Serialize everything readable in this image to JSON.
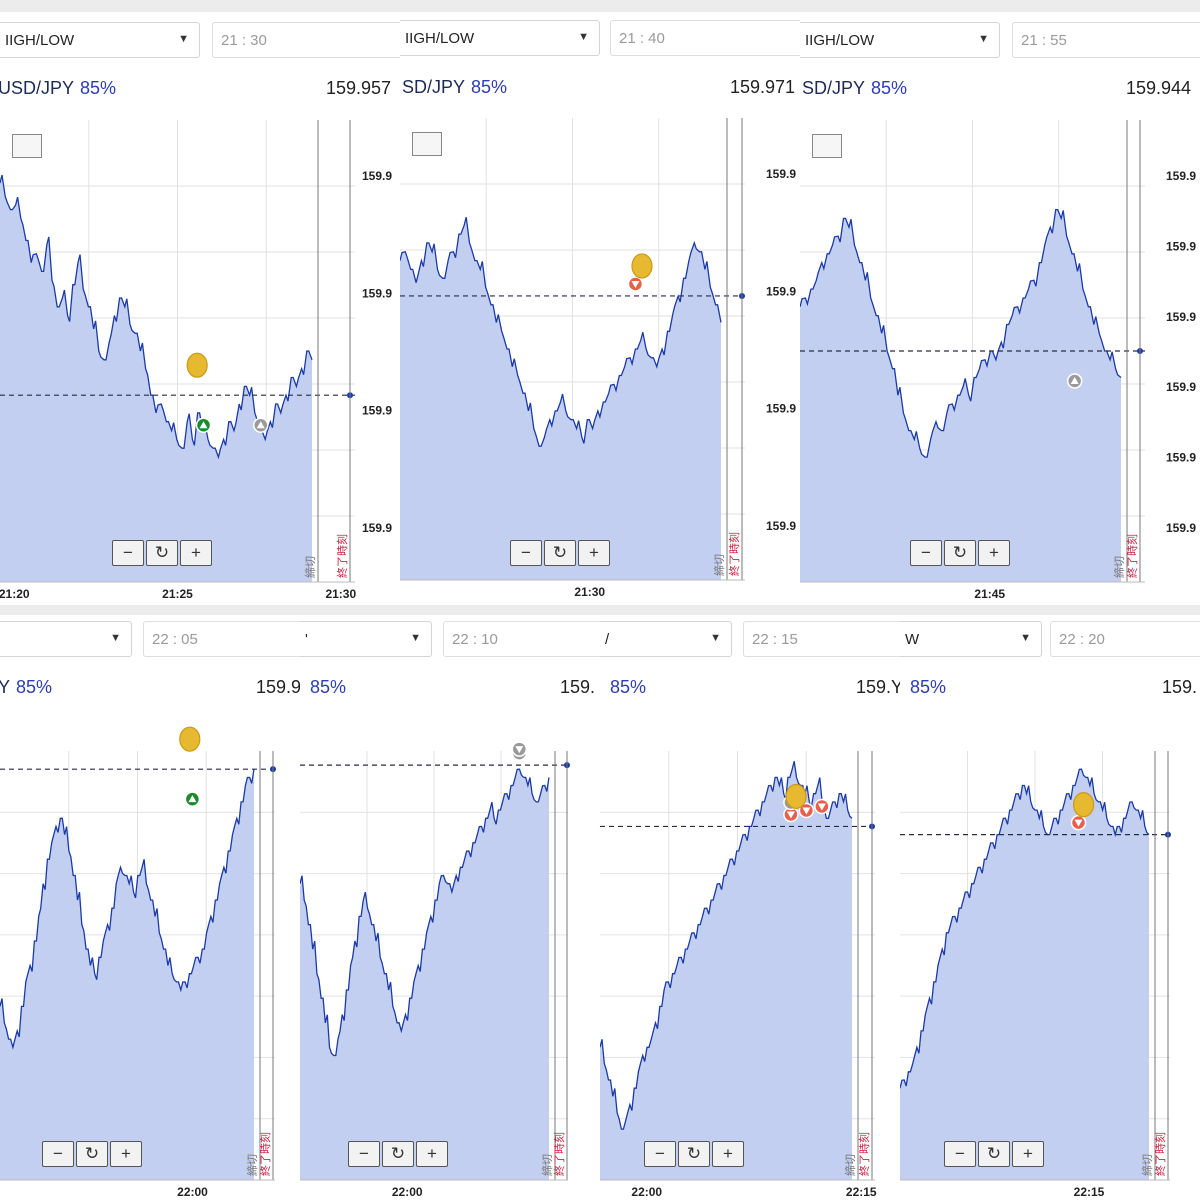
{
  "colors": {
    "line": "#1a3aa8",
    "fill": "#c3cff0",
    "grid": "#e2e2e2",
    "dash": "#2a2a4a",
    "up": "#1a8a2a",
    "down": "#e8604a",
    "grey": "#9a9a9a",
    "coin": "#e6b931",
    "end": "#cc2244"
  },
  "icons": {
    "select_arrow": "▼",
    "zoom_out": "−",
    "zoom_reset": "↻",
    "zoom_in": "+",
    "chart_type": "chart-type-icon"
  },
  "panels": [
    {
      "type_label": "IIGH/LOW",
      "time_label": "21 : 30",
      "pair": "USD/JPY",
      "payout": "85%",
      "price": "159.957",
      "y_ticks": [
        "159.9",
        "159.9",
        "159.9",
        "159.9"
      ],
      "x_ticks": [
        "21:20",
        "21:25",
        "21:30"
      ],
      "close_label": "締切",
      "end_label": "終了時刻"
    },
    {
      "type_label": "IIGH/LOW",
      "time_label": "21 : 40",
      "pair": "SD/JPY",
      "payout": "85%",
      "price": "159.971",
      "y_ticks": [
        "159.9",
        "159.9",
        "159.9",
        "159.9"
      ],
      "x_ticks": [
        "21:30"
      ],
      "close_label": "締切",
      "end_label": "終了時刻"
    },
    {
      "type_label": "IIGH/LOW",
      "time_label": "21 : 55",
      "pair": "SD/JPY",
      "payout": "85%",
      "price": "159.944",
      "y_ticks": [
        "159.9",
        "159.9",
        "159.9",
        "159.9",
        "159.9",
        "159.9"
      ],
      "x_ticks": [
        "21:45"
      ],
      "close_label": "締切",
      "end_label": "終了時刻"
    },
    {
      "type_label": "",
      "time_label": "22 : 05",
      "pair": "Y",
      "payout": "85%",
      "price": "159.9",
      "y_ticks": [],
      "x_ticks": [
        "22:00"
      ],
      "close_label": "締切",
      "end_label": "終了時刻"
    },
    {
      "type_label": "'",
      "time_label": "22 : 10",
      "pair": "",
      "payout": "85%",
      "price": "159.",
      "y_ticks": [],
      "x_ticks": [
        "22:00"
      ],
      "close_label": "締切",
      "end_label": "終了時刻"
    },
    {
      "type_label": "/",
      "time_label": "22 : 15",
      "pair": "",
      "payout": "85%",
      "price": "159.Y",
      "y_ticks": [],
      "x_ticks": [
        "22:00",
        "22:15"
      ],
      "close_label": "締切",
      "end_label": "終了時刻"
    },
    {
      "type_label": "W",
      "time_label": "22 : 20",
      "pair": "",
      "payout": "85%",
      "price": "159.",
      "y_ticks": [],
      "x_ticks": [
        "22:15"
      ],
      "close_label": "締切",
      "end_label": "終了時刻"
    }
  ],
  "chart_data": [
    {
      "type": "area",
      "pair": "USD/JPY",
      "x_ticks": [
        "21:20",
        "21:25",
        "21:30"
      ],
      "y_ticks": [
        "159.9",
        "159.9",
        "159.9",
        "159.9"
      ],
      "series": [
        {
          "values": [
            0.88,
            0.85,
            0.82,
            0.83,
            0.8,
            0.75,
            0.7,
            0.72,
            0.68,
            0.74,
            0.66,
            0.6,
            0.62,
            0.58,
            0.65,
            0.7,
            0.64,
            0.6,
            0.55,
            0.5,
            0.48,
            0.52,
            0.58,
            0.62,
            0.6,
            0.56,
            0.54,
            0.5,
            0.46,
            0.4,
            0.36,
            0.38,
            0.34,
            0.32,
            0.3,
            0.28,
            0.34,
            0.3,
            0.36,
            0.32,
            0.3,
            0.28,
            0.26,
            0.3,
            0.34,
            0.32,
            0.38,
            0.42,
            0.4,
            0.36,
            0.32,
            0.3,
            0.34,
            0.38,
            0.36,
            0.4,
            0.44,
            0.42,
            0.46,
            0.5,
            0.48
          ]
        }
      ],
      "ref": 0.4,
      "markers": [
        {
          "kind": "up",
          "at": 0.64
        },
        {
          "kind": "grey-up",
          "at": 0.82
        },
        {
          "kind": "coin",
          "at": 0.62
        }
      ]
    },
    {
      "type": "area",
      "pair": "USD/JPY",
      "x_ticks": [
        "21:30"
      ],
      "y_ticks": [
        "159.9",
        "159.9",
        "159.9",
        "159.9"
      ],
      "series": [
        {
          "values": [
            0.7,
            0.72,
            0.68,
            0.65,
            0.7,
            0.74,
            0.72,
            0.68,
            0.66,
            0.7,
            0.72,
            0.76,
            0.78,
            0.74,
            0.7,
            0.68,
            0.64,
            0.6,
            0.56,
            0.54,
            0.5,
            0.46,
            0.44,
            0.4,
            0.36,
            0.32,
            0.28,
            0.3,
            0.34,
            0.36,
            0.38,
            0.36,
            0.34,
            0.32,
            0.3,
            0.34,
            0.32,
            0.36,
            0.38,
            0.4,
            0.42,
            0.44,
            0.46,
            0.48,
            0.5,
            0.52,
            0.5,
            0.48,
            0.46,
            0.5,
            0.54,
            0.58,
            0.62,
            0.66,
            0.7,
            0.74,
            0.72,
            0.68,
            0.64,
            0.6,
            0.56
          ]
        }
      ],
      "ref": 0.62,
      "markers": [
        {
          "kind": "down",
          "at": 0.72
        },
        {
          "kind": "coin",
          "at": 0.74
        }
      ]
    },
    {
      "type": "area",
      "pair": "USD/JPY",
      "x_ticks": [
        "21:45"
      ],
      "y_ticks": [
        "159.9",
        "159.9",
        "159.9",
        "159.9",
        "159.9",
        "159.9"
      ],
      "series": [
        {
          "values": [
            0.6,
            0.62,
            0.64,
            0.66,
            0.7,
            0.72,
            0.74,
            0.76,
            0.8,
            0.78,
            0.74,
            0.7,
            0.66,
            0.62,
            0.58,
            0.54,
            0.5,
            0.46,
            0.4,
            0.36,
            0.32,
            0.3,
            0.28,
            0.26,
            0.3,
            0.34,
            0.32,
            0.36,
            0.38,
            0.4,
            0.42,
            0.4,
            0.44,
            0.46,
            0.48,
            0.5,
            0.48,
            0.52,
            0.56,
            0.58,
            0.6,
            0.62,
            0.64,
            0.66,
            0.7,
            0.74,
            0.78,
            0.82,
            0.8,
            0.76,
            0.72,
            0.68,
            0.64,
            0.6,
            0.56,
            0.54,
            0.5,
            0.48,
            0.46,
            0.44
          ]
        }
      ],
      "ref": 0.5,
      "markers": [
        {
          "kind": "grey-up",
          "at": 0.84
        }
      ]
    },
    {
      "type": "area",
      "x_ticks": [
        "22:00"
      ],
      "series": [
        {
          "values": [
            0.4,
            0.36,
            0.32,
            0.3,
            0.34,
            0.4,
            0.46,
            0.5,
            0.56,
            0.62,
            0.7,
            0.76,
            0.8,
            0.84,
            0.86,
            0.82,
            0.78,
            0.72,
            0.66,
            0.6,
            0.54,
            0.5,
            0.48,
            0.52,
            0.56,
            0.6,
            0.64,
            0.7,
            0.74,
            0.72,
            0.7,
            0.68,
            0.72,
            0.74,
            0.7,
            0.66,
            0.62,
            0.58,
            0.54,
            0.5,
            0.48,
            0.46,
            0.44,
            0.46,
            0.48,
            0.5,
            0.52,
            0.54,
            0.58,
            0.62,
            0.66,
            0.7,
            0.74,
            0.78,
            0.82,
            0.86,
            0.9,
            0.94,
            0.96,
            0.98
          ]
        }
      ],
      "ref": 0.98,
      "markers": [
        {
          "kind": "up",
          "at": 0.74
        },
        {
          "kind": "coin",
          "at": 0.73
        }
      ]
    },
    {
      "type": "area",
      "x_ticks": [
        "22:00"
      ],
      "series": [
        {
          "values": [
            0.7,
            0.66,
            0.6,
            0.54,
            0.48,
            0.42,
            0.36,
            0.3,
            0.28,
            0.32,
            0.38,
            0.44,
            0.5,
            0.56,
            0.62,
            0.66,
            0.64,
            0.6,
            0.56,
            0.52,
            0.48,
            0.44,
            0.4,
            0.36,
            0.34,
            0.38,
            0.42,
            0.46,
            0.5,
            0.54,
            0.58,
            0.62,
            0.66,
            0.7,
            0.72,
            0.7,
            0.68,
            0.72,
            0.74,
            0.76,
            0.78,
            0.8,
            0.82,
            0.84,
            0.86,
            0.88,
            0.86,
            0.88,
            0.9,
            0.92,
            0.94,
            0.96,
            0.98,
            0.96,
            0.94,
            0.92,
            0.9,
            0.92,
            0.94,
            0.96
          ]
        }
      ],
      "ref": 0.99,
      "markers": [
        {
          "kind": "grey-down",
          "at": 0.86
        },
        {
          "kind": "grey-down",
          "at": 0.86
        }
      ]
    },
    {
      "type": "area",
      "x_ticks": [
        "22:00",
        "22:15"
      ],
      "series": [
        {
          "values": [
            0.3,
            0.26,
            0.22,
            0.18,
            0.14,
            0.1,
            0.12,
            0.16,
            0.2,
            0.24,
            0.28,
            0.3,
            0.32,
            0.36,
            0.4,
            0.44,
            0.46,
            0.48,
            0.5,
            0.52,
            0.54,
            0.56,
            0.58,
            0.6,
            0.62,
            0.64,
            0.66,
            0.68,
            0.7,
            0.72,
            0.74,
            0.76,
            0.78,
            0.8,
            0.82,
            0.84,
            0.86,
            0.88,
            0.9,
            0.92,
            0.94,
            0.96,
            0.94,
            0.92,
            0.96,
            0.98,
            0.96,
            0.94,
            0.92,
            0.9,
            0.92,
            0.94,
            0.9,
            0.86,
            0.88,
            0.9,
            0.92,
            0.9,
            0.88,
            0.86
          ]
        }
      ],
      "ref": 0.84,
      "markers": [
        {
          "kind": "down",
          "at": 0.74
        },
        {
          "kind": "down",
          "at": 0.8
        },
        {
          "kind": "down",
          "at": 0.86
        },
        {
          "kind": "grey-down",
          "at": 0.74
        },
        {
          "kind": "coin",
          "at": 0.76
        }
      ]
    },
    {
      "type": "area",
      "x_ticks": [
        "22:15"
      ],
      "series": [
        {
          "values": [
            0.2,
            0.22,
            0.24,
            0.26,
            0.3,
            0.34,
            0.38,
            0.42,
            0.46,
            0.5,
            0.54,
            0.58,
            0.6,
            0.62,
            0.64,
            0.66,
            0.68,
            0.7,
            0.72,
            0.74,
            0.76,
            0.78,
            0.8,
            0.82,
            0.84,
            0.86,
            0.88,
            0.9,
            0.92,
            0.94,
            0.92,
            0.9,
            0.88,
            0.86,
            0.84,
            0.82,
            0.84,
            0.86,
            0.88,
            0.9,
            0.92,
            0.94,
            0.96,
            0.98,
            0.96,
            0.94,
            0.92,
            0.9,
            0.88,
            0.86,
            0.84,
            0.82,
            0.84,
            0.86,
            0.88,
            0.9,
            0.88,
            0.86,
            0.84,
            0.82
          ]
        }
      ],
      "ref": 0.82,
      "markers": [
        {
          "kind": "down",
          "at": 0.7
        },
        {
          "kind": "coin",
          "at": 0.72
        }
      ]
    }
  ]
}
